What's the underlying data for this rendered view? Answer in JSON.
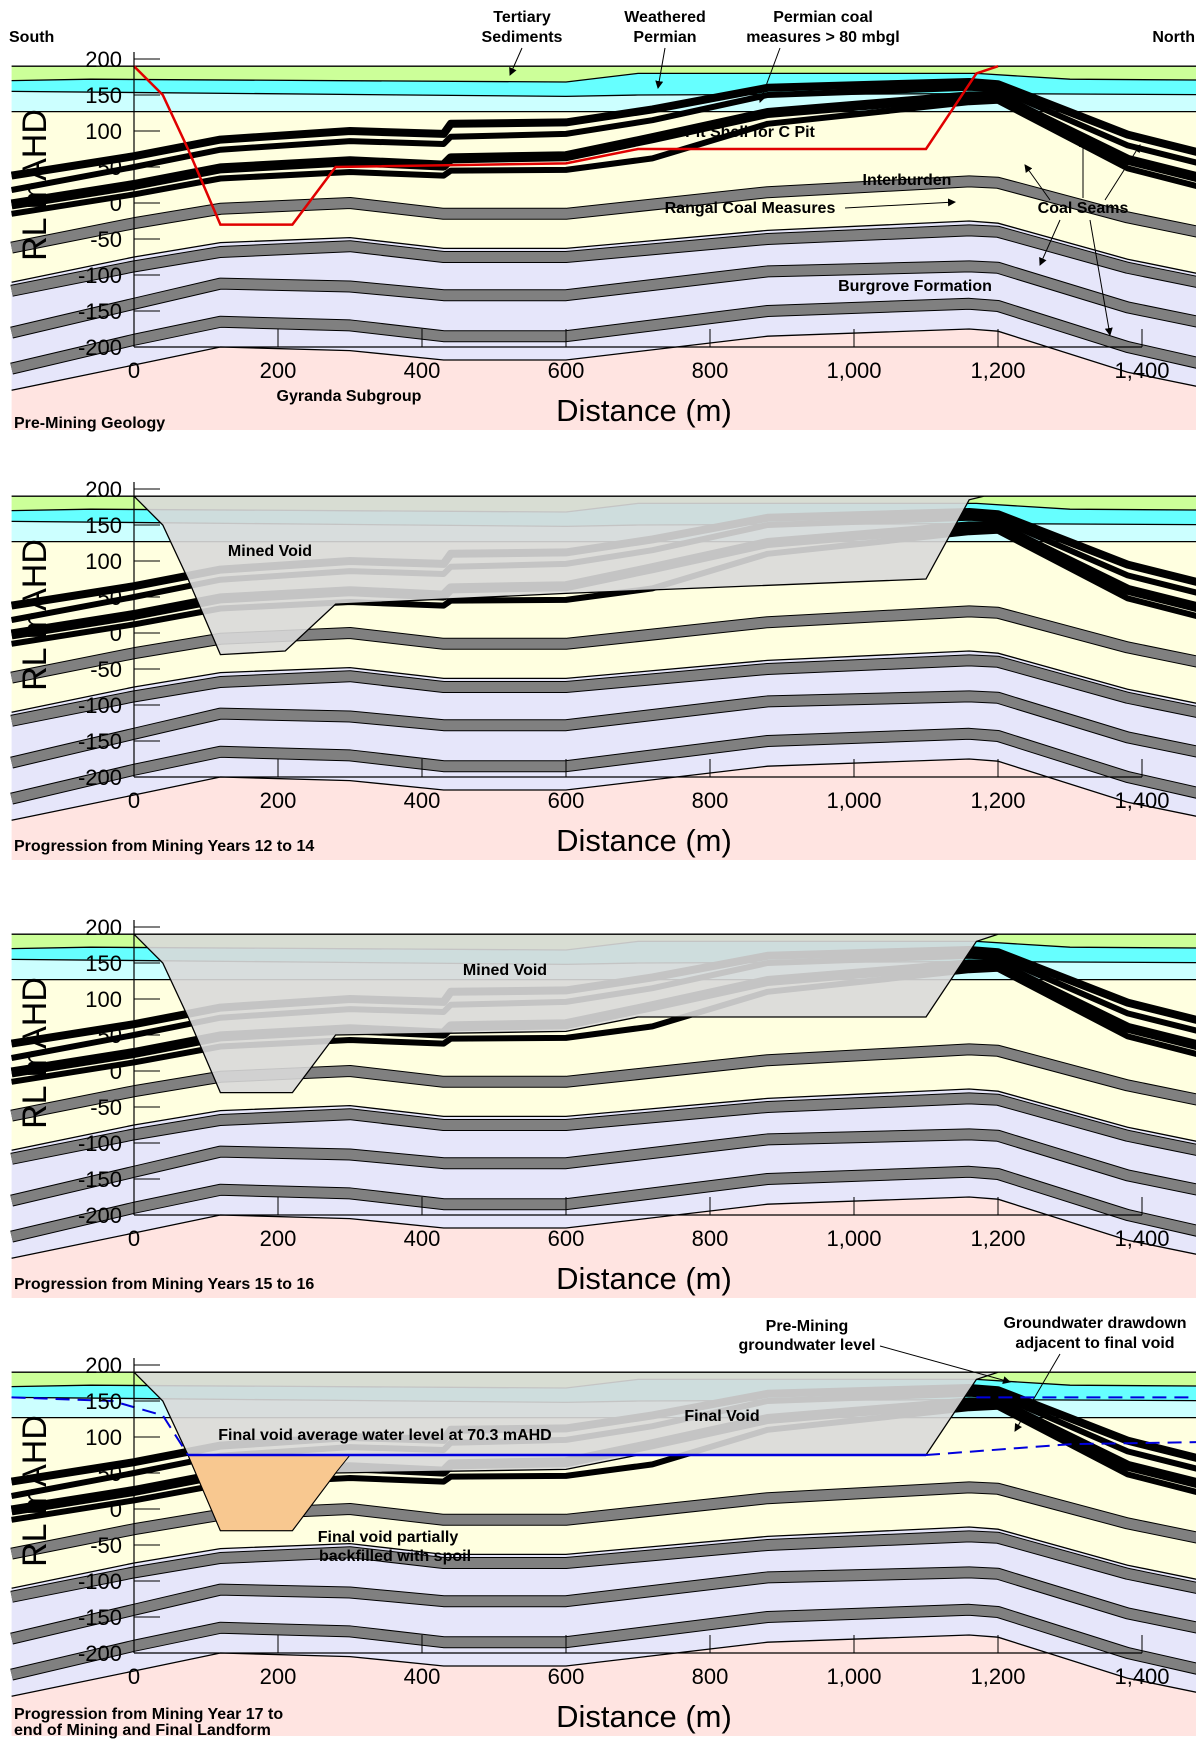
{
  "colors": {
    "tertiary": "#ccff99",
    "weathered": "#66ffff",
    "permian_coal_upper": "#ccffff",
    "rangal": "#ffffe0",
    "burngrove": "#e6e6fa",
    "gyranda": "#ffe4e1",
    "coal_seam": "#808080",
    "pit_shell": "#e00000",
    "mined_void": "#d9d9d9",
    "spoil": "#f8c890",
    "water_level": "#0000dd"
  },
  "axes": {
    "y_title": "RL mAHD",
    "x_title": "Distance (m)",
    "y_ticks": [
      "200",
      "150",
      "100",
      "50",
      "0",
      "-50",
      "-100",
      "-150",
      "-200"
    ],
    "x_ticks": [
      "0",
      "200",
      "400",
      "600",
      "800",
      "1,000",
      "1,200",
      "1,400"
    ]
  },
  "panels": [
    {
      "title": "Pre-Mining Geology",
      "labels": {
        "south": "South",
        "north": "North",
        "tertiary": "Tertiary Sediments",
        "weathered": "Weathered Permian",
        "permian_coal": "Permian coal measures > 80 mbgl",
        "pit_shell": "Pit Shell for C Pit",
        "interburden": "Interburden",
        "rangal": "Rangal Coal Measures",
        "coal_seams": "Coal Seams",
        "burngrove": "Burgrove Formation",
        "gyranda": "Gyranda Subgroup"
      }
    },
    {
      "title": "Progression from Mining Years 12 to 14",
      "labels": {
        "mined_void": "Mined Void"
      }
    },
    {
      "title": "Progression from Mining Years 15 to 16",
      "labels": {
        "mined_void": "Mined Void"
      }
    },
    {
      "title": "Progression from Mining Year 17 to end of Mining and Final Landform",
      "labels": {
        "pre_mining_gw": "Pre-Mining groundwater level",
        "gw_drawdown": "Groundwater drawdown adjacent to final void",
        "final_void": "Final Void",
        "water_level": "Final void average water level at 70.3 mAHD",
        "backfilled": "Final void partially backfilled with spoil"
      }
    }
  ]
}
